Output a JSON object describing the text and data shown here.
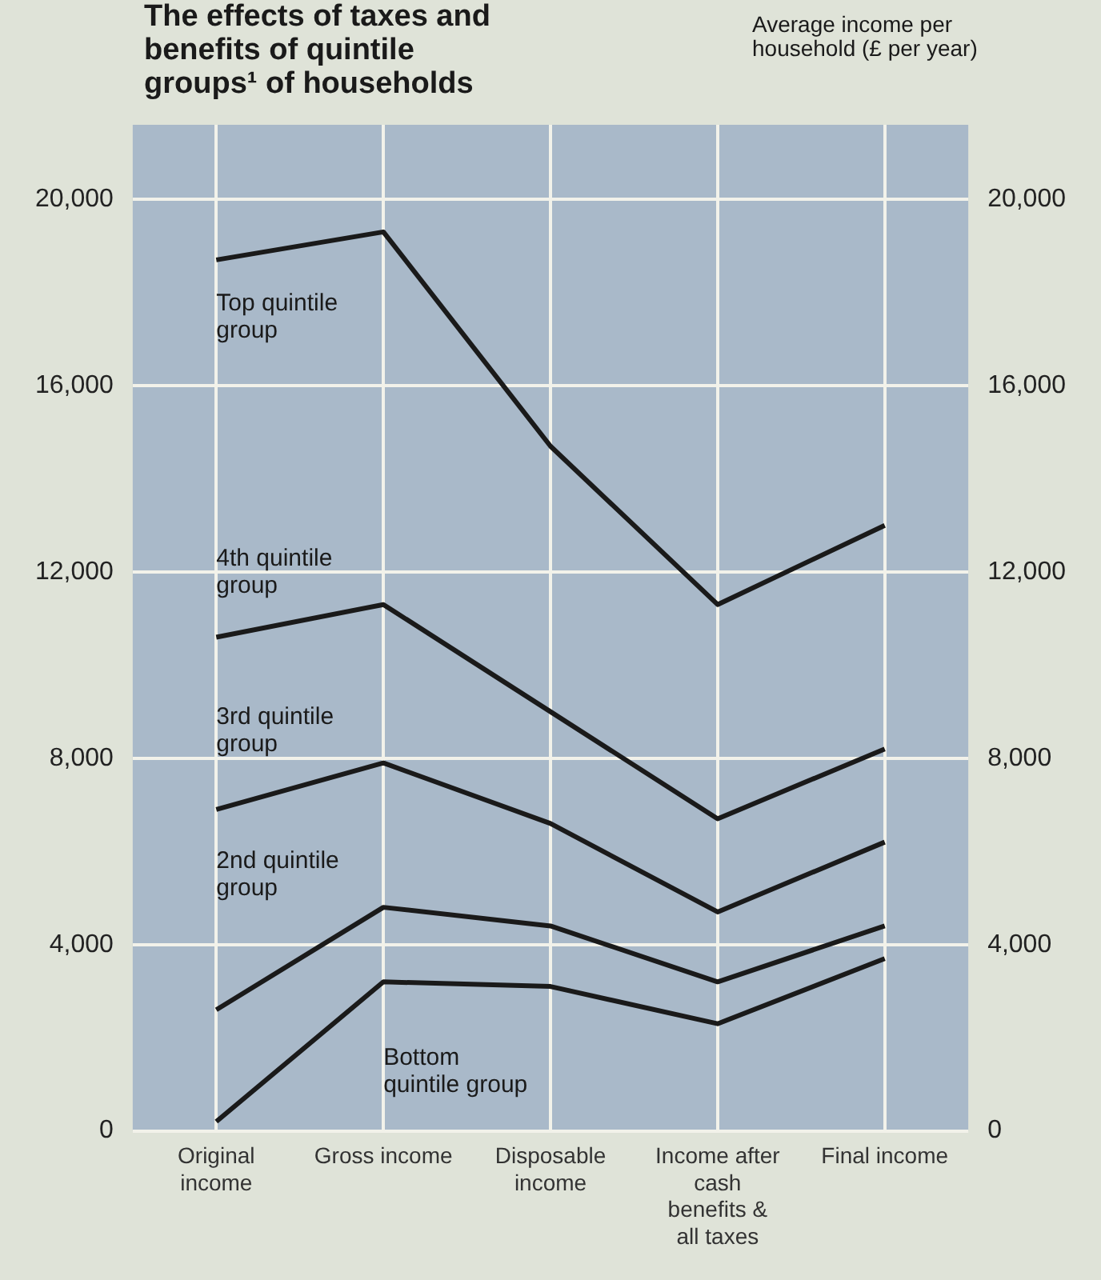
{
  "chart_data": {
    "type": "line",
    "title": "The effects of taxes and benefits of quintile groups¹ of households",
    "y2label": "Average income per household (£ per year)",
    "categories": [
      "Original income",
      "Gross income",
      "Disposable income",
      "Income after cash benefits & all taxes",
      "Final income"
    ],
    "series": [
      {
        "name": "Top quintile group",
        "color": "#1a1a1a",
        "values": [
          18700,
          19300,
          14700,
          11300,
          13000
        ]
      },
      {
        "name": "4th quintile group",
        "color": "#1a1a1a",
        "values": [
          10600,
          11300,
          9000,
          6700,
          8200
        ]
      },
      {
        "name": "3rd quintile group",
        "color": "#1a1a1a",
        "values": [
          6900,
          7900,
          6600,
          4700,
          6200
        ]
      },
      {
        "name": "2nd quintile group",
        "color": "#1a1a1a",
        "values": [
          2600,
          4800,
          4400,
          3200,
          4400
        ]
      },
      {
        "name": "Bottom quintile group",
        "color": "#1a1a1a",
        "values": [
          200,
          3200,
          3100,
          2300,
          3700
        ]
      }
    ],
    "ylim": [
      0,
      21600
    ],
    "yticks": [
      0,
      {
        "value": 4000,
        "label": "4,000"
      },
      {
        "value": 8000,
        "label": "8,000"
      },
      {
        "value": 12000,
        "label": "12,000"
      },
      {
        "value": 16000,
        "label": "16,000"
      },
      {
        "value": 20000,
        "label": "20,000"
      }
    ],
    "y2lim": [
      0,
      21600
    ],
    "y2ticks": [
      0,
      {
        "value": 4000,
        "label": "4,000"
      },
      {
        "value": 8000,
        "label": "8,000"
      },
      {
        "value": 12000,
        "label": "12,000"
      },
      {
        "value": 16000,
        "label": "16,000"
      },
      {
        "value": 20000,
        "label": "20,000"
      }
    ],
    "grid": true,
    "legend": false,
    "marker": "none",
    "line_style": "solid"
  }
}
